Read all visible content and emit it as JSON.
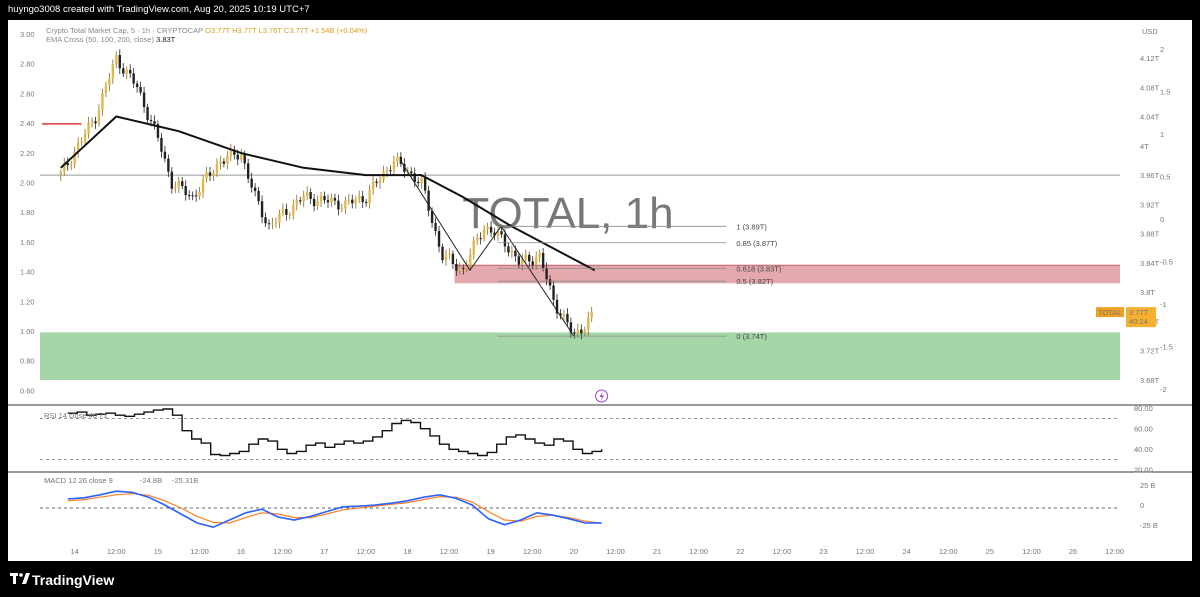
{
  "header": {
    "credit": "huyngo3008 created with TradingView.com, Aug 20, 2025 10:19 UTC+7"
  },
  "legend": {
    "symbol": "Crypto Total Market Cap, 5 · 1h · CRYPTOCAP",
    "ohlc": "O3.77T  H3.77T  L3.76T  C3.77T  +1.54B (+0.04%)",
    "ema_label": "EMA Cross (50, 100, 200, close)",
    "ema_value": "3.83T"
  },
  "watermark": "TOTAL, 1h",
  "currency": "USD",
  "price_tag": {
    "name": "TOTAL",
    "value": "3.77T",
    "countdown": "40:24"
  },
  "fib_levels": [
    {
      "label": "1 (3.89T)"
    },
    {
      "label": "0.85 (3.87T)"
    },
    {
      "label": "0.618 (3.83T)"
    },
    {
      "label": "0.5 (3.82T)"
    },
    {
      "label": "0 (3.74T)"
    }
  ],
  "rsi": {
    "label": "RSI 14 close 40.71"
  },
  "macd": {
    "label": "MACD 12 26 close 9",
    "v1": "-24.8B",
    "v2": "-25.31B"
  },
  "footer": {
    "brand": "TradingView"
  },
  "colors": {
    "candle_up": "#e0b94a",
    "candle_down": "#222222",
    "ema": "#111111",
    "macd_line": "#2962ff",
    "signal_line": "#ff7f27",
    "demand_zone": "#a5d6a7",
    "supply_zone": "#df9a9f",
    "support_line": "#e53935"
  },
  "chart_data": [
    {
      "type": "candlestick",
      "title": "Crypto Total Market Cap (TOTAL), 1h",
      "y_unit": "USD",
      "right_axis_ticks": [
        "4.12T",
        "4.08T",
        "4.04T",
        "4T",
        "3.96T",
        "3.92T",
        "3.88T",
        "3.84T",
        "3.8T",
        "3.76T",
        "3.72T",
        "3.68T"
      ],
      "right_axis_ticks_2": [
        "2",
        "1.5",
        "1",
        "0.5",
        "0",
        "-0.5",
        "-1",
        "-1.5",
        "-2"
      ],
      "left_axis_ticks": [
        "3.00",
        "2.80",
        "2.60",
        "2.40",
        "2.20",
        "2.00",
        "1.80",
        "1.60",
        "1.40",
        "1.20",
        "1.00",
        "0.80",
        "0.60"
      ],
      "x_ticks": [
        "14",
        "12:00",
        "15",
        "12:00",
        "16",
        "12:00",
        "17",
        "12:00",
        "18",
        "12:00",
        "19",
        "12:00",
        "20",
        "12:00",
        "21",
        "12:00",
        "22",
        "12:00",
        "23",
        "12:00",
        "24",
        "12:00",
        "25",
        "12:00",
        "26",
        "12:00"
      ],
      "close_path": [
        {
          "t": "13 20:00",
          "v": 3.96
        },
        {
          "t": "14 06:00",
          "v": 4.04
        },
        {
          "t": "14 12:00",
          "v": 4.12
        },
        {
          "t": "14 18:00",
          "v": 4.08
        },
        {
          "t": "15 00:00",
          "v": 4.01
        },
        {
          "t": "15 04:00",
          "v": 3.95
        },
        {
          "t": "15 10:00",
          "v": 3.93
        },
        {
          "t": "15 18:00",
          "v": 3.98
        },
        {
          "t": "16 00:00",
          "v": 3.99
        },
        {
          "t": "16 04:00",
          "v": 3.93
        },
        {
          "t": "16 08:00",
          "v": 3.89
        },
        {
          "t": "16 18:00",
          "v": 3.93
        },
        {
          "t": "17 06:00",
          "v": 3.92
        },
        {
          "t": "17 12:00",
          "v": 3.93
        },
        {
          "t": "17 20:00",
          "v": 3.98
        },
        {
          "t": "18 04:00",
          "v": 3.95
        },
        {
          "t": "18 10:00",
          "v": 3.85
        },
        {
          "t": "18 16:00",
          "v": 3.83
        },
        {
          "t": "18 22:00",
          "v": 3.89
        },
        {
          "t": "19 04:00",
          "v": 3.87
        },
        {
          "t": "19 08:00",
          "v": 3.84
        },
        {
          "t": "19 14:00",
          "v": 3.85
        },
        {
          "t": "19 18:00",
          "v": 3.79
        },
        {
          "t": "20 00:00",
          "v": 3.74
        },
        {
          "t": "20 06:00",
          "v": 3.77
        }
      ],
      "ema_path": [
        {
          "t": "13 20:00",
          "v": 3.97
        },
        {
          "t": "14 12:00",
          "v": 4.04
        },
        {
          "t": "15 06:00",
          "v": 4.02
        },
        {
          "t": "16 00:00",
          "v": 3.99
        },
        {
          "t": "16 18:00",
          "v": 3.97
        },
        {
          "t": "17 12:00",
          "v": 3.96
        },
        {
          "t": "18 04:00",
          "v": 3.96
        },
        {
          "t": "18 16:00",
          "v": 3.93
        },
        {
          "t": "19 06:00",
          "v": 3.89
        },
        {
          "t": "19 18:00",
          "v": 3.86
        },
        {
          "t": "20 06:00",
          "v": 3.83
        }
      ],
      "zones": {
        "demand": {
          "from": 3.68,
          "to": 3.745
        },
        "supply": {
          "from": 3.823,
          "to": 3.834
        },
        "support_red_level": 4.0
      },
      "horizontal_line": 3.96,
      "fib": {
        "high": 3.89,
        "low": 3.74,
        "levels": [
          1,
          0.85,
          0.618,
          0.5,
          0
        ]
      }
    },
    {
      "type": "line",
      "title": "RSI",
      "y_ticks": [
        "80.00",
        "60.00",
        "40.00",
        "20.00"
      ],
      "bands": [
        70,
        30
      ],
      "values": [
        75,
        76,
        73,
        74,
        75,
        73,
        72,
        74,
        76,
        78,
        79,
        73,
        58,
        50,
        46,
        35,
        34,
        36,
        38,
        45,
        50,
        48,
        40,
        36,
        38,
        44,
        46,
        42,
        45,
        48,
        46,
        48,
        52,
        58,
        65,
        68,
        66,
        60,
        53,
        45,
        40,
        38,
        36,
        34,
        37,
        45,
        52,
        54,
        50,
        46,
        44,
        50,
        48,
        40,
        36,
        38,
        40
      ]
    },
    {
      "type": "line",
      "title": "MACD",
      "y_ticks": [
        "25 B",
        "0",
        "-25 B"
      ],
      "series": [
        {
          "name": "MACD",
          "values": [
            15,
            17,
            22,
            28,
            26,
            18,
            5,
            -10,
            -25,
            -32,
            -20,
            -8,
            -2,
            -15,
            -20,
            -14,
            -6,
            2,
            3,
            5,
            8,
            12,
            18,
            22,
            16,
            5,
            -18,
            -28,
            -20,
            -8,
            -12,
            -18,
            -25,
            -24.8
          ]
        },
        {
          "name": "Signal",
          "values": [
            12,
            14,
            18,
            22,
            24,
            21,
            12,
            0,
            -14,
            -24,
            -25,
            -16,
            -8,
            -10,
            -16,
            -16,
            -10,
            -3,
            0,
            3,
            6,
            9,
            14,
            19,
            18,
            10,
            -6,
            -20,
            -22,
            -14,
            -12,
            -16,
            -22,
            -25.31
          ]
        }
      ]
    }
  ]
}
